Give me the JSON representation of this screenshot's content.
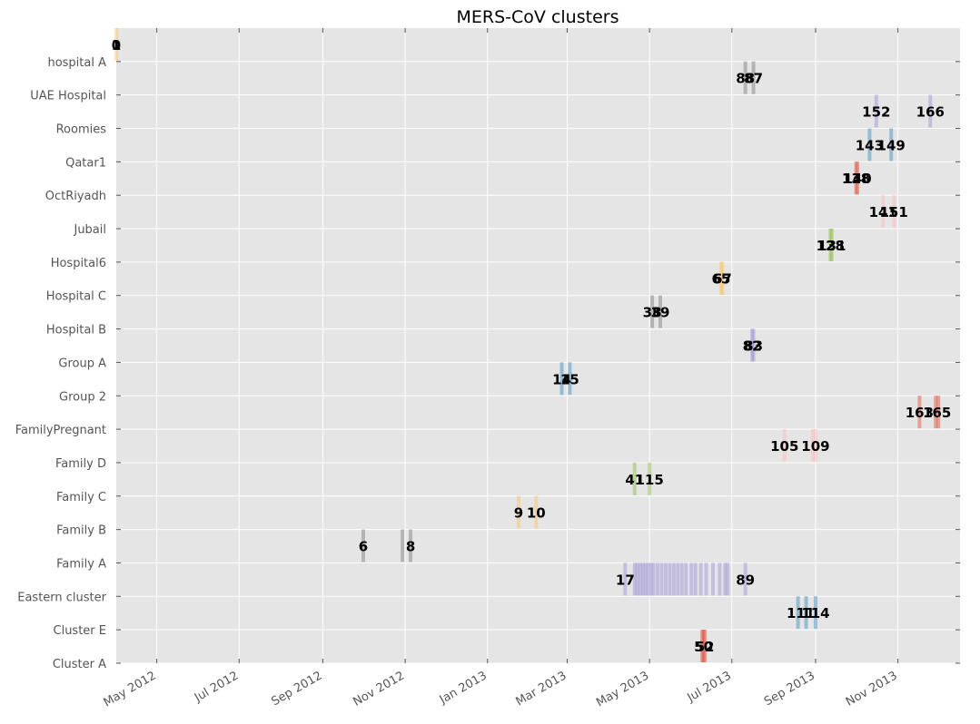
{
  "chart_data": {
    "type": "scatter",
    "title": "MERS-CoV clusters",
    "xlabel": "",
    "ylabel": "",
    "grid": true,
    "xlim": [
      "2012-04-01",
      "2013-12-17"
    ],
    "x_ticks": [
      "2012-05-01",
      "2012-07-01",
      "2012-09-01",
      "2012-11-01",
      "2013-01-01",
      "2013-03-01",
      "2013-05-01",
      "2013-07-01",
      "2013-09-01",
      "2013-11-01"
    ],
    "x_tick_labels": [
      "May 2012",
      "Jul 2012",
      "Sep 2012",
      "Nov 2012",
      "Jan 2013",
      "Mar 2013",
      "May 2013",
      "Jul 2013",
      "Sep 2013",
      "Nov 2013"
    ],
    "categories": [
      "Cluster A",
      "Cluster E",
      "Eastern cluster",
      "Family A",
      "Family B",
      "Family C",
      "Family D",
      "FamilyPregnant",
      "Group 2",
      "Group A",
      "Hospital B",
      "Hospital C",
      "Hospital6",
      "Jubail",
      "OctRiyadh",
      "Qatar1",
      "Roomies",
      "UAE Hospital",
      "hospital A"
    ],
    "clusters": [
      {
        "name": "Cluster A",
        "color": "#E24A33",
        "labels": [
          {
            "text": "50",
            "date": "2013-06-10"
          },
          {
            "text": "52",
            "date": "2013-06-11"
          }
        ],
        "dates": [
          "2013-06-09",
          "2013-06-10",
          "2013-06-11"
        ]
      },
      {
        "name": "Cluster E",
        "color": "#348ABD",
        "labels": [
          {
            "text": "111",
            "date": "2013-08-21"
          },
          {
            "text": "114",
            "date": "2013-09-01"
          }
        ],
        "dates": [
          "2013-08-19",
          "2013-08-25",
          "2013-09-01"
        ]
      },
      {
        "name": "Eastern cluster",
        "color": "#988ED5",
        "labels": [
          {
            "text": "17",
            "date": "2013-04-13"
          },
          {
            "text": "89",
            "date": "2013-07-11"
          }
        ],
        "dates": [
          "2013-04-13",
          "2013-04-20",
          "2013-04-22",
          "2013-04-24",
          "2013-04-26",
          "2013-04-28",
          "2013-04-30",
          "2013-05-02",
          "2013-05-04",
          "2013-05-07",
          "2013-05-10",
          "2013-05-13",
          "2013-05-16",
          "2013-05-19",
          "2013-05-22",
          "2013-05-25",
          "2013-05-28",
          "2013-06-01",
          "2013-06-04",
          "2013-06-08",
          "2013-06-12",
          "2013-06-17",
          "2013-06-22",
          "2013-06-26",
          "2013-06-28",
          "2013-07-11"
        ]
      },
      {
        "name": "Family A",
        "color": "#777777",
        "labels": [
          {
            "text": "6",
            "date": "2012-10-01"
          },
          {
            "text": "8",
            "date": "2012-11-05"
          }
        ],
        "dates": [
          "2012-10-01",
          "2012-10-30",
          "2012-11-05"
        ]
      },
      {
        "name": "Family B",
        "color": "#FBC15E",
        "labels": [
          {
            "text": "9",
            "date": "2013-01-24"
          },
          {
            "text": "10",
            "date": "2013-02-06"
          }
        ],
        "dates": [
          "2013-01-24",
          "2013-02-06"
        ]
      },
      {
        "name": "Family C",
        "color": "#8EBA42",
        "labels": [
          {
            "text": "41",
            "date": "2013-04-20"
          },
          {
            "text": "115",
            "date": "2013-05-01"
          }
        ],
        "dates": [
          "2013-04-20",
          "2013-05-01"
        ]
      },
      {
        "name": "Family D",
        "color": "#FFB5B8",
        "labels": [
          {
            "text": "105",
            "date": "2013-08-09"
          },
          {
            "text": "109",
            "date": "2013-09-01"
          }
        ],
        "dates": [
          "2013-08-09",
          "2013-08-30",
          "2013-09-01"
        ]
      },
      {
        "name": "FamilyPregnant",
        "color": "#E24A33",
        "labels": [
          {
            "text": "163",
            "date": "2013-11-17"
          },
          {
            "text": "165",
            "date": "2013-11-30"
          }
        ],
        "dates": [
          "2013-11-17",
          "2013-11-29",
          "2013-12-01"
        ]
      },
      {
        "name": "Group 2",
        "color": "#348ABD",
        "labels": [
          {
            "text": "14",
            "date": "2013-02-25"
          },
          {
            "text": "15",
            "date": "2013-03-03"
          }
        ],
        "dates": [
          "2013-02-25",
          "2013-03-03"
        ]
      },
      {
        "name": "Group A",
        "color": "#988ED5",
        "labels": [
          {
            "text": "82",
            "date": "2013-07-16"
          },
          {
            "text": "83",
            "date": "2013-07-17"
          }
        ],
        "dates": [
          "2013-07-16",
          "2013-07-17"
        ]
      },
      {
        "name": "Hospital B",
        "color": "#777777",
        "labels": [
          {
            "text": "38",
            "date": "2013-05-03"
          },
          {
            "text": "39",
            "date": "2013-05-09"
          }
        ],
        "dates": [
          "2013-05-03",
          "2013-05-09"
        ]
      },
      {
        "name": "Hospital C",
        "color": "#FBC15E",
        "labels": [
          {
            "text": "65",
            "date": "2013-06-23"
          },
          {
            "text": "67",
            "date": "2013-06-24"
          }
        ],
        "dates": [
          "2013-06-23",
          "2013-06-24"
        ]
      },
      {
        "name": "Hospital6",
        "color": "#8EBA42",
        "labels": [
          {
            "text": "128",
            "date": "2013-09-12"
          },
          {
            "text": "131",
            "date": "2013-09-13"
          }
        ],
        "dates": [
          "2013-09-12",
          "2013-09-13"
        ]
      },
      {
        "name": "Jubail",
        "color": "#FFB5B8",
        "labels": [
          {
            "text": "141",
            "date": "2013-10-21"
          },
          {
            "text": "151",
            "date": "2013-10-29"
          }
        ],
        "dates": [
          "2013-10-21",
          "2013-10-29"
        ]
      },
      {
        "name": "OctRiyadh",
        "color": "#E24A33",
        "labels": [
          {
            "text": "138",
            "date": "2013-10-01"
          },
          {
            "text": "140",
            "date": "2013-10-02"
          }
        ],
        "dates": [
          "2013-10-01",
          "2013-10-02"
        ]
      },
      {
        "name": "Qatar1",
        "color": "#348ABD",
        "labels": [
          {
            "text": "143",
            "date": "2013-10-11"
          },
          {
            "text": "149",
            "date": "2013-10-27"
          }
        ],
        "dates": [
          "2013-10-11",
          "2013-10-27"
        ]
      },
      {
        "name": "Roomies",
        "color": "#988ED5",
        "labels": [
          {
            "text": "152",
            "date": "2013-10-16"
          },
          {
            "text": "166",
            "date": "2013-11-25"
          }
        ],
        "dates": [
          "2013-10-16",
          "2013-11-25"
        ]
      },
      {
        "name": "UAE Hospital",
        "color": "#777777",
        "labels": [
          {
            "text": "88",
            "date": "2013-07-11"
          },
          {
            "text": "87",
            "date": "2013-07-17"
          }
        ],
        "dates": [
          "2013-07-11",
          "2013-07-17"
        ]
      },
      {
        "name": "hospital A",
        "color": "#FBC15E",
        "labels": [
          {
            "text": "1",
            "date": "2012-04-01"
          },
          {
            "text": "0",
            "date": "2012-04-01"
          }
        ],
        "dates": [
          "2012-04-01"
        ]
      }
    ]
  }
}
